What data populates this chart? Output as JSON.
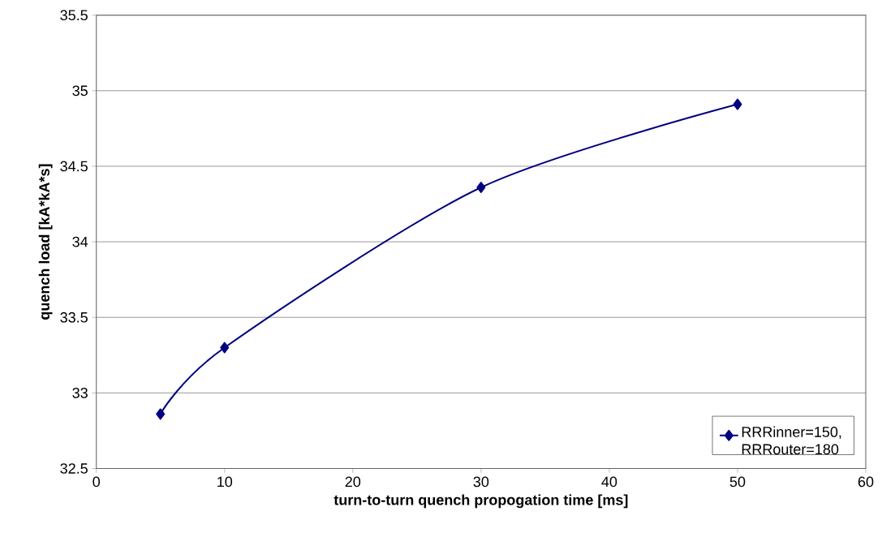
{
  "chart_data": {
    "type": "line",
    "xlabel": "turn-to-turn quench propogation time [ms]",
    "ylabel": "quench load [kA*kA*s]",
    "x": [
      5,
      10,
      30,
      50
    ],
    "series": [
      {
        "name": "RRRinner=150, RRRouter=180",
        "color": "#000080",
        "values": [
          32.86,
          33.3,
          34.36,
          34.91
        ]
      }
    ],
    "xlim": [
      0,
      60
    ],
    "xticks": [
      0,
      10,
      20,
      30,
      40,
      50,
      60
    ],
    "ylim": [
      32.5,
      35.5
    ],
    "yticks": [
      32.5,
      33,
      33.5,
      34,
      34.5,
      35,
      35.5
    ],
    "grid": "y",
    "legend": "bottom right",
    "marker": "diamond",
    "line_style": "solid"
  }
}
